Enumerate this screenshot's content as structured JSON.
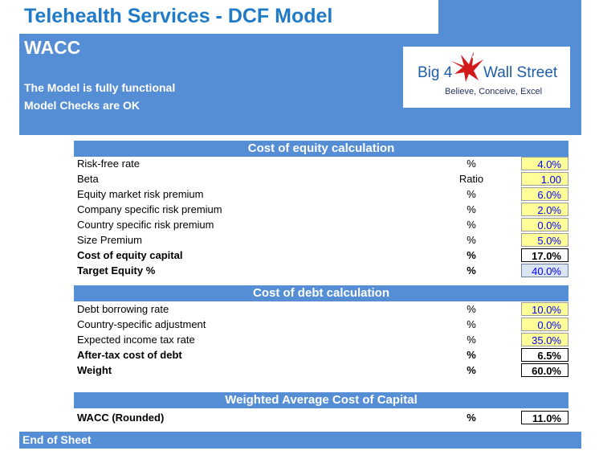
{
  "header": {
    "title": "Telehealth Services - DCF Model",
    "sheet_name": "WACC",
    "status_line_1": "The Model is fully functional",
    "status_line_2": "Model Checks are OK"
  },
  "logo": {
    "brand_left": "Big 4",
    "brand_right": "Wall Street",
    "tagline": "Believe, Conceive, Excel"
  },
  "equity": {
    "header": "Cost of equity calculation",
    "rows": [
      {
        "label": "Risk-free rate",
        "unit": "%",
        "value": "4.0%"
      },
      {
        "label": "Beta",
        "unit": "Ratio",
        "value": "1.00"
      },
      {
        "label": "Equity market risk premium",
        "unit": "%",
        "value": "6.0%"
      },
      {
        "label": "Company specific risk premium",
        "unit": "%",
        "value": "2.0%"
      },
      {
        "label": "Country specific risk premium",
        "unit": "%",
        "value": "0.0%"
      },
      {
        "label": "Size Premium",
        "unit": "%",
        "value": "5.0%"
      },
      {
        "label": "Cost of equity capital",
        "unit": "%",
        "value": "17.0%"
      },
      {
        "label": "Target Equity %",
        "unit": "%",
        "value": "40.0%"
      }
    ]
  },
  "debt": {
    "header": "Cost of debt calculation",
    "rows": [
      {
        "label": "Debt borrowing rate",
        "unit": "%",
        "value": "10.0%"
      },
      {
        "label": "Country-specific adjustment",
        "unit": "%",
        "value": "0.0%"
      },
      {
        "label": "Expected income tax rate",
        "unit": "%",
        "value": "35.0%"
      },
      {
        "label": "After-tax cost of debt",
        "unit": "%",
        "value": "6.5%"
      },
      {
        "label": "Weight",
        "unit": "%",
        "value": "60.0%"
      }
    ]
  },
  "wacc": {
    "header": "Weighted Average Cost of Capital",
    "label": "WACC (Rounded)",
    "unit": "%",
    "value": "11.0%"
  },
  "footer": {
    "text": "End of Sheet"
  },
  "colors": {
    "band_blue": "#558ed5",
    "title_blue": "#1f7bc8",
    "input_fill": "#ffff99",
    "input_text": "#0000ff"
  }
}
